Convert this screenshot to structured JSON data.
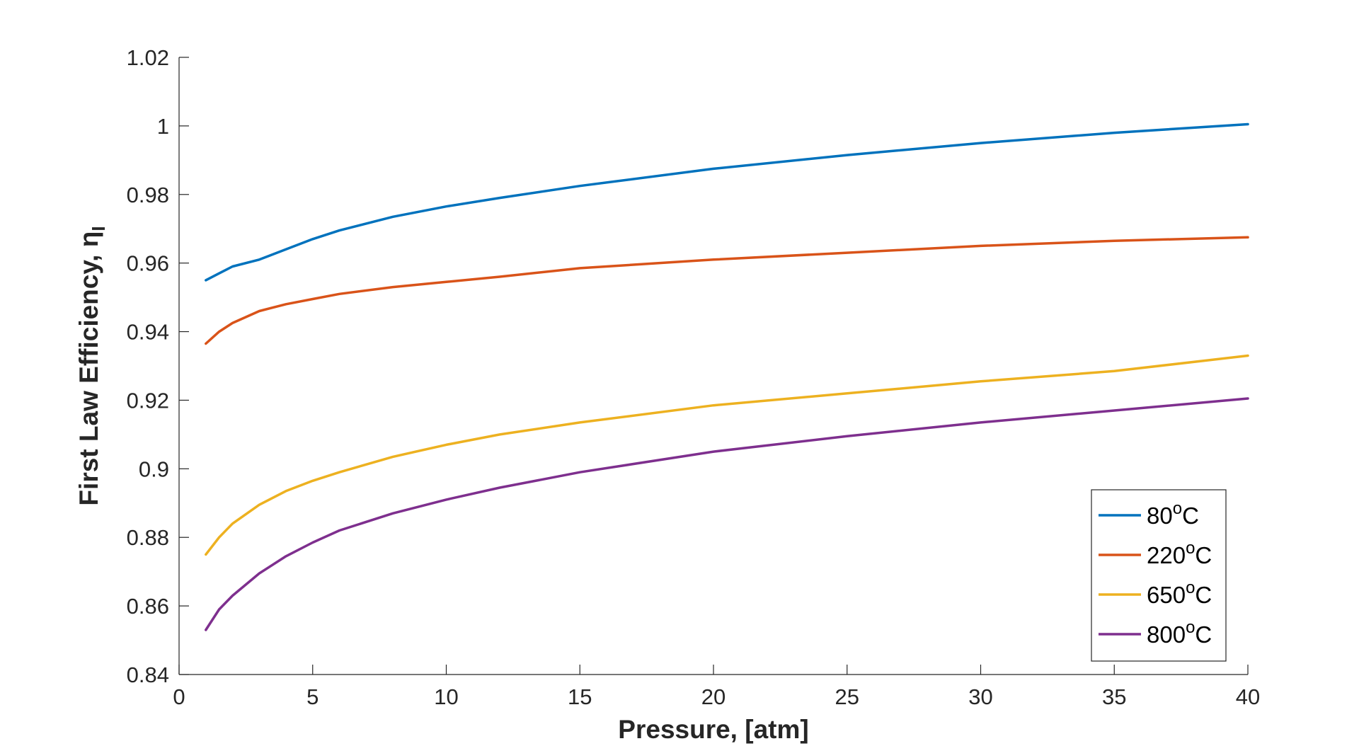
{
  "chart_data": {
    "type": "line",
    "title": "",
    "xlabel": "Pressure, [atm]",
    "ylabel": "First Law Efficiency, η",
    "ylabel_subscript": "I",
    "xlim": [
      0,
      40
    ],
    "ylim": [
      0.84,
      1.02
    ],
    "xticks": [
      0,
      5,
      10,
      15,
      20,
      25,
      30,
      35,
      40
    ],
    "xtick_labels": [
      "0",
      "5",
      "10",
      "15",
      "20",
      "25",
      "30",
      "35",
      "40"
    ],
    "yticks": [
      0.84,
      0.86,
      0.88,
      0.9,
      0.92,
      0.94,
      0.96,
      0.98,
      1,
      1.02
    ],
    "ytick_labels": [
      "0.84",
      "0.86",
      "0.88",
      "0.9",
      "0.92",
      "0.94",
      "0.96",
      "0.98",
      "1",
      "1.02"
    ],
    "grid": false,
    "legend_position": "bottom-right",
    "x": [
      1,
      1.5,
      2,
      3,
      4,
      5,
      6,
      8,
      10,
      12,
      15,
      20,
      25,
      30,
      35,
      40
    ],
    "series": [
      {
        "name": "80",
        "unit_sup": "o",
        "unit": "C",
        "color": "#0072BD",
        "values": [
          0.955,
          0.957,
          0.959,
          0.961,
          0.964,
          0.967,
          0.9695,
          0.9735,
          0.9765,
          0.979,
          0.9825,
          0.9875,
          0.9915,
          0.995,
          0.998,
          1.0005
        ]
      },
      {
        "name": "220",
        "unit_sup": "o",
        "unit": "C",
        "color": "#D95319",
        "values": [
          0.9365,
          0.94,
          0.9425,
          0.946,
          0.948,
          0.9495,
          0.951,
          0.953,
          0.9545,
          0.956,
          0.9585,
          0.961,
          0.963,
          0.965,
          0.9665,
          0.9675
        ]
      },
      {
        "name": "650",
        "unit_sup": "o",
        "unit": "C",
        "color": "#EDB120",
        "values": [
          0.875,
          0.88,
          0.884,
          0.8895,
          0.8935,
          0.8965,
          0.899,
          0.9035,
          0.907,
          0.91,
          0.9135,
          0.9185,
          0.922,
          0.9255,
          0.9285,
          0.933
        ]
      },
      {
        "name": "800",
        "unit_sup": "o",
        "unit": "C",
        "color": "#7E2F8E",
        "values": [
          0.853,
          0.859,
          0.863,
          0.8695,
          0.8745,
          0.8785,
          0.882,
          0.887,
          0.891,
          0.8945,
          0.899,
          0.905,
          0.9095,
          0.9135,
          0.917,
          0.9205
        ]
      }
    ]
  }
}
